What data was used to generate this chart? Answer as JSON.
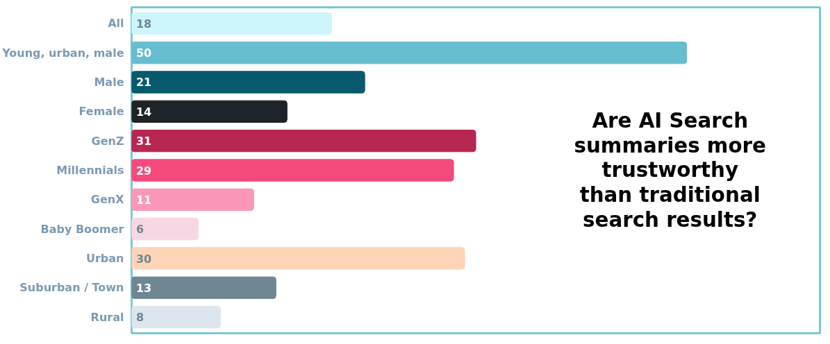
{
  "chart_data": {
    "type": "bar",
    "orientation": "horizontal",
    "title": "Are AI Search\nsummaries more\ntrustworthy\nthan traditional\nsearch results?",
    "categories": [
      "All",
      "Young, urban, male",
      "Male",
      "Female",
      "GenZ",
      "Millennials",
      "GenX",
      "Baby Boomer",
      "Urban",
      "Suburban / Town",
      "Rural"
    ],
    "values": [
      18,
      50,
      21,
      14,
      31,
      29,
      11,
      6,
      30,
      13,
      8
    ],
    "colors": [
      "#cdf5fc",
      "#67bdd0",
      "#075a6e",
      "#1d2327",
      "#b82652",
      "#f54a7c",
      "#fb98b9",
      "#f8d7e5",
      "#fed4b6",
      "#6f8792",
      "#dde6ef"
    ],
    "data_labels": true
  }
}
